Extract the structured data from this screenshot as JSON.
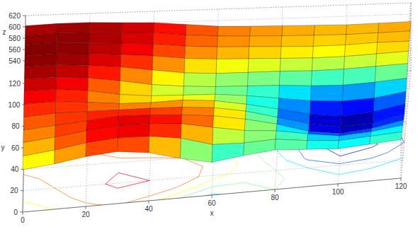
{
  "chart_data": {
    "type": "surfc",
    "xlabel": "x",
    "ylabel": "y",
    "zlabel": "z",
    "x": [
      0,
      10,
      20,
      30,
      40,
      50,
      60,
      70,
      80,
      90,
      100,
      110,
      120
    ],
    "y": [
      0,
      10,
      20,
      30,
      40,
      50,
      60,
      70,
      80,
      90,
      100,
      110,
      120
    ],
    "z": [
      [
        575,
        580,
        588,
        592,
        585,
        570,
        558,
        565,
        570,
        566,
        562,
        565,
        568
      ],
      [
        580,
        586,
        594,
        598,
        596,
        588,
        572,
        570,
        572,
        565,
        560,
        563,
        566
      ],
      [
        585,
        590,
        597,
        602,
        600,
        596,
        585,
        575,
        570,
        560,
        552,
        555,
        562
      ],
      [
        588,
        592,
        596,
        600,
        598,
        594,
        588,
        578,
        565,
        548,
        540,
        545,
        555
      ],
      [
        592,
        595,
        594,
        593,
        592,
        590,
        585,
        575,
        560,
        545,
        535,
        538,
        550
      ],
      [
        596,
        597,
        592,
        586,
        584,
        585,
        580,
        570,
        558,
        545,
        538,
        542,
        552
      ],
      [
        600,
        600,
        594,
        584,
        578,
        576,
        574,
        568,
        560,
        552,
        548,
        550,
        558
      ],
      [
        603,
        603,
        598,
        590,
        580,
        574,
        570,
        568,
        566,
        562,
        560,
        562,
        566
      ],
      [
        605,
        606,
        602,
        596,
        588,
        580,
        576,
        575,
        574,
        572,
        572,
        574,
        576
      ],
      [
        606,
        607,
        604,
        600,
        595,
        588,
        584,
        582,
        580,
        578,
        578,
        580,
        582
      ],
      [
        606,
        607,
        605,
        602,
        598,
        592,
        588,
        586,
        584,
        582,
        582,
        584,
        584
      ],
      [
        604,
        606,
        605,
        603,
        600,
        594,
        590,
        588,
        586,
        585,
        584,
        585,
        586
      ],
      [
        602,
        604,
        604,
        602,
        600,
        595,
        590,
        588,
        587,
        586,
        585,
        586,
        587
      ]
    ],
    "xlim": [
      0,
      120
    ],
    "ylim": [
      0,
      120
    ],
    "zlim": [
      500,
      620
    ],
    "xticks": [
      0,
      20,
      40,
      60,
      80,
      100,
      120
    ],
    "yticks": [
      0,
      20,
      40,
      60,
      80,
      100,
      120
    ],
    "zticks": [
      540,
      560,
      580,
      600,
      620
    ],
    "grid": true
  }
}
